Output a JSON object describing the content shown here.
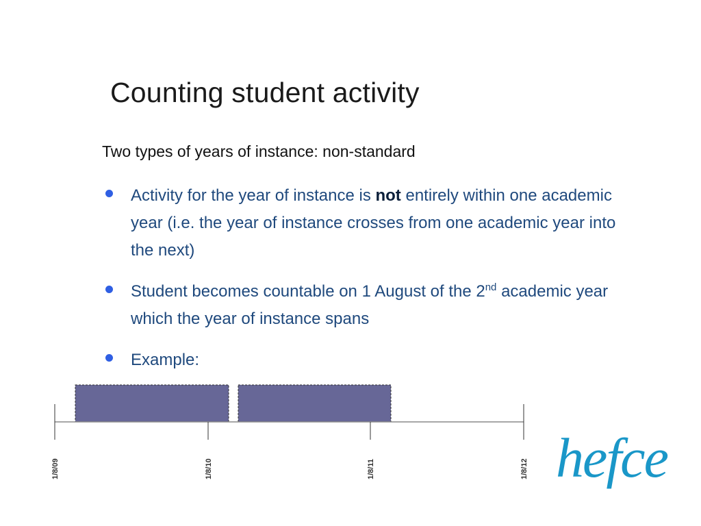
{
  "slide": {
    "title": "Counting student activity",
    "subtitle": "Two types of years of instance:  non-standard",
    "bullets": [
      {
        "before": "Activity for the year of instance is ",
        "bold": "not",
        "after": " entirely within one academic year (i.e. the year of instance crosses from one academic year into the next)"
      },
      {
        "text": "Student becomes countable on 1 August of the 2",
        "sup": "nd",
        "after": " academic year which the year of instance spans"
      },
      {
        "text": "Example:"
      }
    ]
  },
  "timeline": {
    "ticks": [
      "1/8/09",
      "1/8/10",
      "1/8/11",
      "1/8/12"
    ],
    "bar_color": "#676797"
  },
  "logo": {
    "text": "hefce",
    "color": "#1a97c8"
  }
}
